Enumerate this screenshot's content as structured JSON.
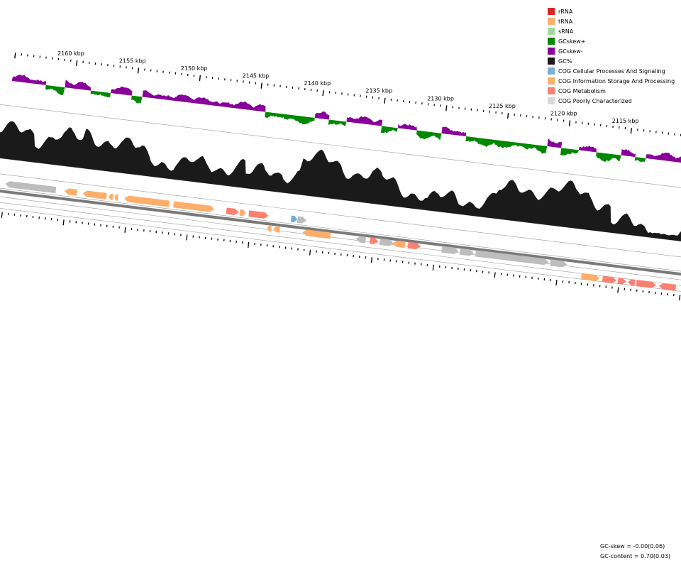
{
  "map": {
    "tick_labels": [
      "2160 kbp",
      "2155 kbp",
      "2150 kbp",
      "2145 kbp",
      "2140 kbp",
      "2135 kbp",
      "2130 kbp",
      "2125 kbp",
      "2120 kbp",
      "2115 kbp"
    ],
    "legend": [
      {
        "label": "rRNA",
        "color": "#d62728"
      },
      {
        "label": "tRNA",
        "color": "#fdae6b"
      },
      {
        "label": "sRNA",
        "color": "#a1d99b"
      },
      {
        "label": "GCskew+",
        "color": "#008800"
      },
      {
        "label": "GCskew-",
        "color": "#880099"
      },
      {
        "label": "GC%",
        "color": "#1a1a1a"
      },
      {
        "label": "COG Cellular Processes And Signaling",
        "color": "#7bafd4"
      },
      {
        "label": "COG Information Storage And Processing",
        "color": "#fdae6b"
      },
      {
        "label": "COG Metabolism",
        "color": "#fa8072"
      },
      {
        "label": "COG Poorly Characterized",
        "color": "#d9d9d9"
      }
    ],
    "stats": {
      "gc_skew": "GC-skew = -0.00(0.06)",
      "gc_content": "GC-content = 0.70(0.03)"
    },
    "colors": {
      "skew_plus": "#008800",
      "skew_minus": "#880099",
      "gc": "#1a1a1a",
      "info": "#fdae6b",
      "metabolism": "#fa8072",
      "poorly": "#bdbdbd",
      "cellular": "#6baed6",
      "backbone": "#7a7a7a",
      "ring_line": "#9a9a9a"
    }
  }
}
